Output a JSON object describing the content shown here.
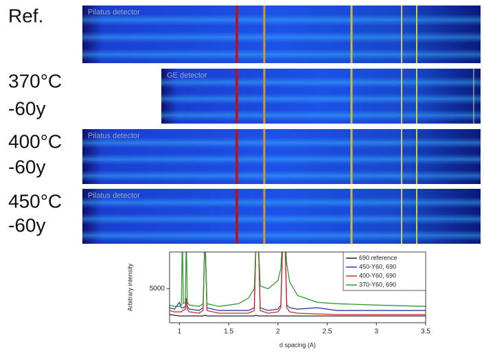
{
  "panels": [
    {
      "label": [
        "Ref."
      ],
      "detector": "Pilatus detector"
    },
    {
      "label": [
        "370°C",
        "-60y"
      ],
      "detector": "GE detector"
    },
    {
      "label": [
        "400°C",
        "-60y"
      ],
      "detector": "Pilatus detector"
    },
    {
      "label": [
        "450°C",
        "-60y"
      ],
      "detector": "Pilatus detector"
    }
  ],
  "chart_data": {
    "type": "line",
    "x_label": "d spacing (A)",
    "y_label": "Arbitrary intensity",
    "x": [
      0.9,
      0.95,
      1.0,
      1.02,
      1.03,
      1.04,
      1.06,
      1.07,
      1.08,
      1.1,
      1.2,
      1.24,
      1.26,
      1.28,
      1.4,
      1.5,
      1.6,
      1.7,
      1.76,
      1.78,
      1.8,
      1.82,
      1.9,
      2.0,
      2.03,
      2.05,
      2.07,
      2.09,
      2.12,
      2.2,
      2.4,
      2.6,
      3.0,
      3.5
    ],
    "series": [
      {
        "name": "690 reference",
        "color": "#222222",
        "values": [
          3100,
          3050,
          3000,
          3000,
          3000,
          3000,
          3000,
          3000,
          3000,
          3000,
          3000,
          3000,
          3050,
          3000,
          3000,
          3000,
          3000,
          3000,
          3000,
          3050,
          3000,
          3000,
          3000,
          3000,
          3000,
          3000,
          3000,
          3000,
          3000,
          3000,
          3000,
          3000,
          3000,
          3000
        ]
      },
      {
        "name": "450-Y60, 690",
        "color": "#2a3fa8",
        "values": [
          3600,
          3500,
          4000,
          3600,
          3600,
          3600,
          3700,
          4300,
          3700,
          3500,
          3400,
          3600,
          9000,
          3600,
          3400,
          3400,
          3400,
          3400,
          3600,
          9000,
          9000,
          3600,
          3400,
          3500,
          3800,
          9000,
          9000,
          3800,
          3600,
          3500,
          3600,
          3400,
          3400,
          3400
        ]
      },
      {
        "name": "400-Y60, 690",
        "color": "#d02828",
        "values": [
          3400,
          3300,
          3300,
          3300,
          3400,
          3400,
          3500,
          4200,
          3500,
          3300,
          3200,
          3400,
          9000,
          3400,
          3200,
          3200,
          3200,
          3200,
          3400,
          9000,
          9000,
          3400,
          3200,
          3300,
          3600,
          9000,
          9000,
          3600,
          3300,
          3200,
          3150,
          3100,
          3100,
          3100
        ]
      },
      {
        "name": "370-Y60, 690",
        "color": "#2e9a2e",
        "values": [
          3800,
          3700,
          3700,
          3800,
          9000,
          3900,
          4000,
          9000,
          4000,
          3800,
          3700,
          3900,
          9000,
          3900,
          3700,
          3800,
          3900,
          4300,
          5000,
          9000,
          9000,
          5200,
          5000,
          5600,
          6500,
          9000,
          9000,
          6800,
          5500,
          4500,
          4000,
          3900,
          3800,
          3700
        ]
      }
    ],
    "xlim": [
      0.9,
      3.5
    ],
    "xticks": [
      1.0,
      1.5,
      2.0,
      2.5,
      3.0,
      3.5
    ],
    "ylim": [
      2500,
      7700
    ],
    "yticks": [
      5000
    ],
    "legend": "upper right"
  }
}
